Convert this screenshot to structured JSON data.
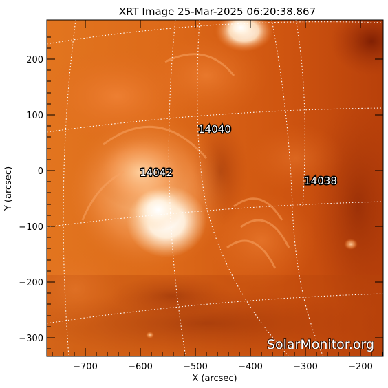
{
  "figure": {
    "title": "XRT Image 25-Mar-2025 06:20:38.867",
    "x_label": "X (arcsec)",
    "y_label": "Y (arcsec)",
    "x_ticks": [
      "−700",
      "−600",
      "−500",
      "−400",
      "−300",
      "−200"
    ],
    "y_ticks": [
      "200",
      "100",
      "0",
      "−100",
      "−200",
      "−300"
    ],
    "x_range_arcsec": [
      -767,
      -158
    ],
    "y_range_arcsec": [
      -335,
      270
    ],
    "watermark": "SolarMonitor.org"
  },
  "regions": [
    {
      "label": "14040",
      "x_arcsec": -440,
      "y_arcsec": 75
    },
    {
      "label": "14042",
      "x_arcsec": -585,
      "y_arcsec": -5
    },
    {
      "label": "14038",
      "x_arcsec": -272,
      "y_arcsec": -17
    }
  ],
  "colors": {
    "background_orange": "#c84a0a",
    "bright_core": "#fff8ee",
    "axis": "#000000",
    "grid": "#ffffff"
  }
}
